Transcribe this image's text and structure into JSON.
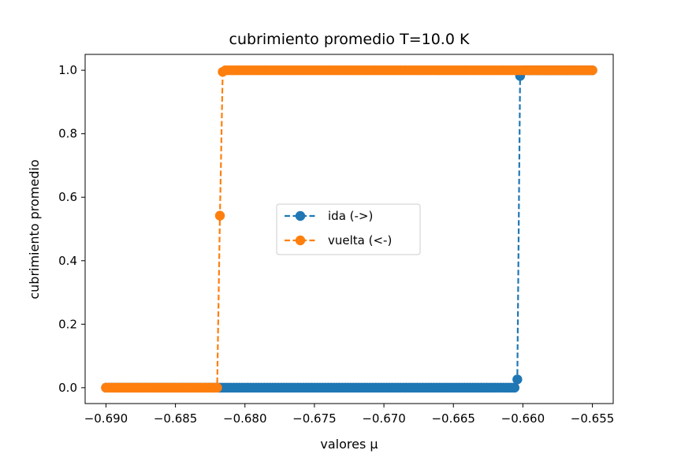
{
  "chart_data": {
    "type": "line",
    "title": "cubrimiento promedio T=10.0 K",
    "xlabel": "valores μ",
    "ylabel": "cubrimiento promedio",
    "xlim": [
      -0.6915,
      -0.6535
    ],
    "ylim": [
      -0.05,
      1.05
    ],
    "x_ticks": [
      -0.69,
      -0.685,
      -0.68,
      -0.675,
      -0.67,
      -0.665,
      -0.66,
      -0.655
    ],
    "x_tick_labels": [
      "−0.690",
      "−0.685",
      "−0.680",
      "−0.675",
      "−0.670",
      "−0.665",
      "−0.660",
      "−0.655"
    ],
    "y_ticks": [
      0.0,
      0.2,
      0.4,
      0.6,
      0.8,
      1.0
    ],
    "y_tick_labels": [
      "0.0",
      "0.2",
      "0.4",
      "0.6",
      "0.8",
      "1.0"
    ],
    "grid": false,
    "legend_position": "center",
    "series": [
      {
        "name": "ida (->)",
        "color": "#1f77b4",
        "line_style": "dashed",
        "marker": "circle",
        "x_range": [
          -0.69,
          -0.655
        ],
        "step": 0.0002,
        "points": [
          {
            "x": -0.6606,
            "y": 0.0
          },
          {
            "x": -0.6604,
            "y": 0.026
          },
          {
            "x": -0.6602,
            "y": 0.982
          },
          {
            "x": -0.66,
            "y": 1.0
          }
        ]
      },
      {
        "name": "vuelta (<-)",
        "color": "#ff7f0e",
        "line_style": "dashed",
        "marker": "circle",
        "x_range": [
          -0.69,
          -0.655
        ],
        "step": 0.0002,
        "points": [
          {
            "x": -0.682,
            "y": 0.0
          },
          {
            "x": -0.6818,
            "y": 0.542
          },
          {
            "x": -0.6816,
            "y": 0.995
          },
          {
            "x": -0.6814,
            "y": 1.0
          }
        ]
      }
    ]
  }
}
